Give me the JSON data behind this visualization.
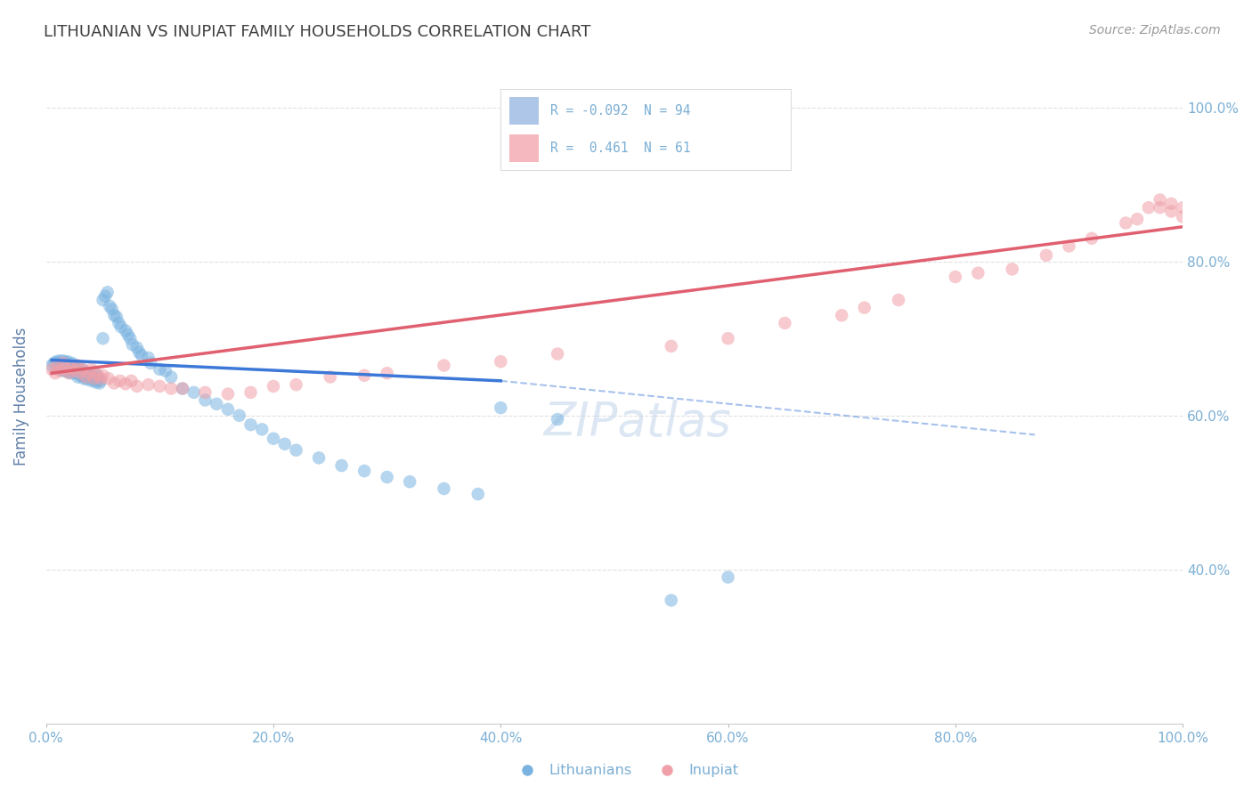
{
  "title": "LITHUANIAN VS INUPIAT FAMILY HOUSEHOLDS CORRELATION CHART",
  "source": "Source: ZipAtlas.com",
  "ylabel": "Family Households",
  "xmin": 0.0,
  "xmax": 1.0,
  "ymin": 0.2,
  "ymax": 1.05,
  "yticks": [
    0.4,
    0.6,
    0.8,
    1.0
  ],
  "ytick_labels": [
    "40.0%",
    "60.0%",
    "80.0%",
    "100.0%"
  ],
  "xticks": [
    0.0,
    0.2,
    0.4,
    0.6,
    0.8,
    1.0
  ],
  "xtick_labels": [
    "0.0%",
    "20.0%",
    "40.0%",
    "60.0%",
    "80.0%",
    "100.0%"
  ],
  "blue_R": -0.092,
  "blue_N": 94,
  "pink_R": 0.461,
  "pink_N": 61,
  "blue_color": "#7ab3e0",
  "pink_color": "#f0a0a8",
  "blue_line_color": "#3c78d8",
  "pink_line_color": "#e06070",
  "blue_line_start_x": 0.005,
  "blue_line_solid_end_x": 0.4,
  "blue_line_dashed_end_x": 0.87,
  "blue_line_y0": 0.672,
  "blue_line_y_solid_end": 0.645,
  "blue_line_y_dashed_end": 0.575,
  "pink_line_start_x": 0.005,
  "pink_line_end_x": 1.0,
  "pink_line_y0": 0.655,
  "pink_line_y_end": 0.845,
  "legend_label_blue": "Lithuanians",
  "legend_label_pink": "Inupiat",
  "blue_x": [
    0.005,
    0.007,
    0.009,
    0.01,
    0.01,
    0.012,
    0.012,
    0.013,
    0.014,
    0.015,
    0.015,
    0.016,
    0.017,
    0.018,
    0.018,
    0.019,
    0.02,
    0.02,
    0.02,
    0.021,
    0.022,
    0.022,
    0.023,
    0.024,
    0.025,
    0.025,
    0.026,
    0.027,
    0.028,
    0.029,
    0.03,
    0.03,
    0.031,
    0.032,
    0.033,
    0.034,
    0.035,
    0.036,
    0.037,
    0.038,
    0.04,
    0.04,
    0.041,
    0.042,
    0.043,
    0.044,
    0.045,
    0.046,
    0.047,
    0.048,
    0.05,
    0.05,
    0.052,
    0.054,
    0.056,
    0.058,
    0.06,
    0.062,
    0.064,
    0.066,
    0.07,
    0.072,
    0.074,
    0.076,
    0.08,
    0.082,
    0.084,
    0.09,
    0.092,
    0.1,
    0.105,
    0.11,
    0.12,
    0.13,
    0.14,
    0.15,
    0.16,
    0.17,
    0.18,
    0.19,
    0.2,
    0.21,
    0.22,
    0.24,
    0.26,
    0.28,
    0.3,
    0.32,
    0.35,
    0.38,
    0.4,
    0.45,
    0.55,
    0.6
  ],
  "blue_y": [
    0.665,
    0.668,
    0.67,
    0.662,
    0.668,
    0.671,
    0.664,
    0.667,
    0.66,
    0.671,
    0.658,
    0.666,
    0.669,
    0.662,
    0.658,
    0.67,
    0.663,
    0.666,
    0.656,
    0.659,
    0.663,
    0.655,
    0.668,
    0.66,
    0.665,
    0.655,
    0.658,
    0.661,
    0.65,
    0.654,
    0.658,
    0.652,
    0.655,
    0.66,
    0.648,
    0.65,
    0.655,
    0.647,
    0.651,
    0.654,
    0.645,
    0.651,
    0.647,
    0.649,
    0.655,
    0.643,
    0.646,
    0.65,
    0.642,
    0.645,
    0.7,
    0.75,
    0.755,
    0.76,
    0.742,
    0.738,
    0.73,
    0.728,
    0.72,
    0.715,
    0.71,
    0.705,
    0.7,
    0.692,
    0.688,
    0.682,
    0.678,
    0.675,
    0.668,
    0.66,
    0.658,
    0.65,
    0.635,
    0.63,
    0.62,
    0.615,
    0.608,
    0.6,
    0.588,
    0.582,
    0.57,
    0.563,
    0.555,
    0.545,
    0.535,
    0.528,
    0.52,
    0.514,
    0.505,
    0.498,
    0.61,
    0.595,
    0.36,
    0.39
  ],
  "pink_x": [
    0.005,
    0.008,
    0.01,
    0.012,
    0.015,
    0.018,
    0.02,
    0.022,
    0.025,
    0.028,
    0.03,
    0.032,
    0.035,
    0.038,
    0.04,
    0.042,
    0.045,
    0.048,
    0.05,
    0.055,
    0.06,
    0.065,
    0.07,
    0.075,
    0.08,
    0.09,
    0.1,
    0.11,
    0.12,
    0.14,
    0.16,
    0.18,
    0.2,
    0.22,
    0.25,
    0.28,
    0.3,
    0.35,
    0.4,
    0.45,
    0.55,
    0.6,
    0.65,
    0.7,
    0.72,
    0.75,
    0.8,
    0.82,
    0.85,
    0.88,
    0.9,
    0.92,
    0.95,
    0.96,
    0.97,
    0.98,
    0.98,
    0.99,
    0.99,
    1.0,
    1.0
  ],
  "pink_y": [
    0.66,
    0.655,
    0.665,
    0.658,
    0.668,
    0.66,
    0.655,
    0.662,
    0.658,
    0.665,
    0.655,
    0.66,
    0.65,
    0.655,
    0.66,
    0.648,
    0.653,
    0.648,
    0.652,
    0.648,
    0.642,
    0.645,
    0.641,
    0.645,
    0.638,
    0.64,
    0.638,
    0.635,
    0.635,
    0.63,
    0.628,
    0.63,
    0.638,
    0.64,
    0.65,
    0.652,
    0.655,
    0.665,
    0.67,
    0.68,
    0.69,
    0.7,
    0.72,
    0.73,
    0.74,
    0.75,
    0.78,
    0.785,
    0.79,
    0.808,
    0.82,
    0.83,
    0.85,
    0.855,
    0.87,
    0.88,
    0.87,
    0.875,
    0.865,
    0.858,
    0.87
  ],
  "watermark": "ZIPatlas",
  "background_color": "#ffffff",
  "grid_color": "#e0e0e0",
  "title_color": "#404040",
  "axis_label_color": "#6080a8",
  "tick_color": "#7bafd4"
}
